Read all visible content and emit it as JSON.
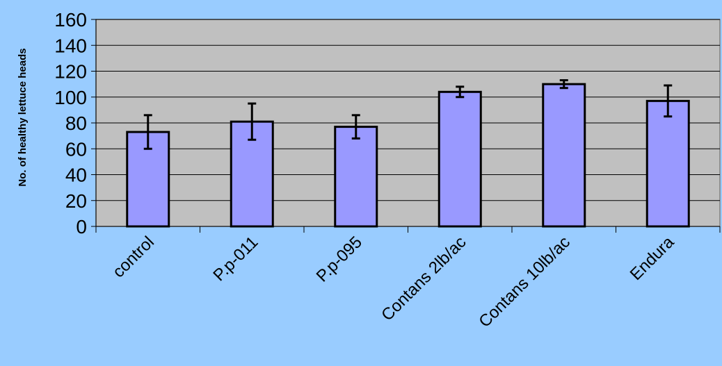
{
  "chart_data": {
    "type": "bar",
    "title": "",
    "xlabel": "",
    "ylabel": "No. of healthy lettuce heads",
    "categories": [
      "control",
      "P.p-011",
      "P.p-095",
      "Contans 2lb/ac",
      "Contans 10lb/ac",
      "Endura"
    ],
    "values": [
      73,
      81,
      77,
      104,
      110,
      97
    ],
    "errors": [
      13,
      14,
      9,
      4,
      3,
      12
    ],
    "ylim": [
      0,
      160
    ],
    "yticks": [
      0,
      20,
      40,
      60,
      80,
      100,
      120,
      140,
      160
    ],
    "grid": true,
    "legend": "none",
    "colors": {
      "bar_fill": "#9999ff",
      "plot_background": "#c0c0c0",
      "page_background": "#99ccff",
      "outline": "#000000"
    }
  }
}
